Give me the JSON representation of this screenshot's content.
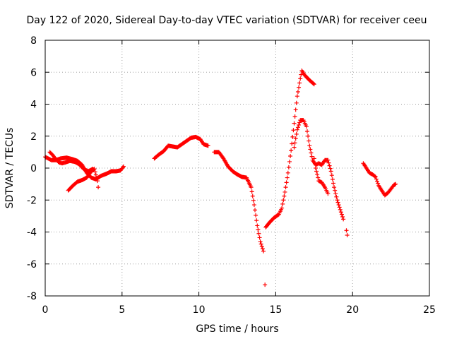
{
  "chart_data": {
    "type": "scatter",
    "title": "Day 122 of 2020, Sidereal Day-to-day VTEC variation (SDTVAR) for receiver ceeu",
    "xlabel": "GPS time / hours",
    "ylabel": "SDTVAR / TECUs",
    "xlim": [
      0,
      25
    ],
    "ylim": [
      -8,
      8
    ],
    "x_ticks": [
      0,
      5,
      10,
      15,
      20,
      25
    ],
    "y_ticks": [
      -8,
      -6,
      -4,
      -2,
      0,
      2,
      4,
      6,
      8
    ],
    "x_tick_labels": [
      "0",
      "5",
      "10",
      "15",
      "20",
      "25"
    ],
    "y_tick_labels": [
      "-8",
      "-6",
      "-4",
      "-2",
      "0",
      "2",
      "4",
      "6",
      "8"
    ],
    "grid": true,
    "marker": "plus",
    "color": "#ff0000",
    "series": [
      {
        "segments": [
          [
            [
              0.0,
              0.7
            ],
            [
              0.2,
              0.6
            ],
            [
              0.4,
              0.5
            ],
            [
              0.7,
              0.5
            ],
            [
              1.0,
              0.6
            ],
            [
              1.4,
              0.65
            ],
            [
              1.8,
              0.55
            ],
            [
              2.1,
              0.45
            ],
            [
              2.4,
              0.2
            ],
            [
              2.7,
              -0.3
            ],
            [
              3.0,
              -0.6
            ],
            [
              3.3,
              -0.7
            ],
            [
              3.6,
              -0.5
            ],
            [
              4.0,
              -0.35
            ],
            [
              4.3,
              -0.2
            ],
            [
              4.6,
              -0.2
            ],
            [
              4.9,
              -0.15
            ],
            [
              5.1,
              0.1
            ]
          ],
          [
            [
              0.3,
              1.0
            ],
            [
              0.5,
              0.8
            ],
            [
              0.7,
              0.55
            ],
            [
              0.9,
              0.35
            ],
            [
              1.1,
              0.3
            ],
            [
              1.3,
              0.35
            ],
            [
              1.6,
              0.45
            ],
            [
              1.9,
              0.4
            ],
            [
              2.2,
              0.25
            ],
            [
              2.5,
              -0.05
            ],
            [
              2.8,
              -0.2
            ],
            [
              3.1,
              -0.05
            ]
          ],
          [
            [
              1.5,
              -1.4
            ],
            [
              1.8,
              -1.1
            ],
            [
              2.1,
              -0.85
            ],
            [
              2.4,
              -0.75
            ],
            [
              2.7,
              -0.6
            ],
            [
              3.0,
              -0.2
            ],
            [
              3.2,
              -0.05
            ],
            [
              3.4,
              -0.8
            ],
            [
              3.45,
              -1.2
            ]
          ],
          [
            [
              7.1,
              0.6
            ],
            [
              7.4,
              0.85
            ],
            [
              7.7,
              1.05
            ],
            [
              8.0,
              1.4
            ],
            [
              8.3,
              1.35
            ],
            [
              8.6,
              1.3
            ],
            [
              8.9,
              1.5
            ],
            [
              9.2,
              1.7
            ],
            [
              9.5,
              1.9
            ],
            [
              9.8,
              1.95
            ],
            [
              10.1,
              1.8
            ],
            [
              10.3,
              1.5
            ],
            [
              10.6,
              1.4
            ]
          ],
          [
            [
              11.0,
              1.0
            ],
            [
              11.3,
              1.0
            ],
            [
              11.6,
              0.6
            ],
            [
              11.9,
              0.1
            ],
            [
              12.2,
              -0.2
            ],
            [
              12.5,
              -0.4
            ],
            [
              12.8,
              -0.55
            ],
            [
              13.1,
              -0.6
            ],
            [
              13.4,
              -1.2
            ],
            [
              13.6,
              -2.3
            ],
            [
              13.8,
              -3.6
            ],
            [
              14.0,
              -4.6
            ],
            [
              14.2,
              -5.2
            ]
          ],
          [
            [
              14.35,
              -3.7
            ],
            [
              14.6,
              -3.4
            ],
            [
              14.9,
              -3.1
            ],
            [
              15.2,
              -2.9
            ],
            [
              15.4,
              -2.5
            ],
            [
              15.6,
              -1.5
            ],
            [
              15.8,
              -0.3
            ],
            [
              16.0,
              1.1
            ],
            [
              16.2,
              2.8
            ],
            [
              16.4,
              4.5
            ],
            [
              16.6,
              5.6
            ],
            [
              16.7,
              6.1
            ],
            [
              16.9,
              5.8
            ],
            [
              17.2,
              5.5
            ],
            [
              17.5,
              5.25
            ]
          ],
          [
            [
              16.2,
              1.3
            ],
            [
              16.4,
              2.4
            ],
            [
              16.6,
              3.0
            ],
            [
              16.8,
              3.0
            ],
            [
              17.0,
              2.6
            ],
            [
              17.2,
              1.4
            ],
            [
              17.4,
              0.5
            ],
            [
              17.6,
              0.2
            ],
            [
              17.8,
              0.3
            ],
            [
              18.0,
              0.2
            ],
            [
              18.2,
              0.5
            ],
            [
              18.4,
              0.5
            ],
            [
              18.6,
              -0.2
            ],
            [
              18.8,
              -1.2
            ],
            [
              19.0,
              -2.0
            ],
            [
              19.2,
              -2.6
            ],
            [
              19.4,
              -3.2
            ]
          ],
          [
            [
              17.5,
              0.6
            ],
            [
              17.6,
              0.0
            ],
            [
              17.7,
              -0.4
            ],
            [
              17.8,
              -0.8
            ],
            [
              18.0,
              -0.9
            ],
            [
              18.2,
              -1.2
            ],
            [
              18.4,
              -1.6
            ]
          ],
          [
            [
              19.6,
              -3.9
            ],
            [
              19.65,
              -4.2
            ]
          ],
          [
            [
              14.3,
              -7.3
            ]
          ],
          [
            [
              20.7,
              0.3
            ],
            [
              20.9,
              0.0
            ],
            [
              21.1,
              -0.3
            ],
            [
              21.3,
              -0.4
            ],
            [
              21.5,
              -0.55
            ],
            [
              21.7,
              -1.1
            ],
            [
              21.9,
              -1.4
            ],
            [
              22.1,
              -1.7
            ],
            [
              22.3,
              -1.55
            ],
            [
              22.5,
              -1.3
            ],
            [
              22.7,
              -1.05
            ],
            [
              22.8,
              -1.0
            ]
          ]
        ]
      }
    ]
  }
}
